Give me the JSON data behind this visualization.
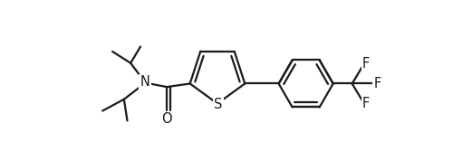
{
  "background": "#ffffff",
  "line_color": "#1a1a1a",
  "line_width": 1.6,
  "font_size": 10.5,
  "font_family": "DejaVu Sans",
  "xlim": [
    -0.72,
    1.55
  ],
  "ylim": [
    0.05,
    1.02
  ]
}
